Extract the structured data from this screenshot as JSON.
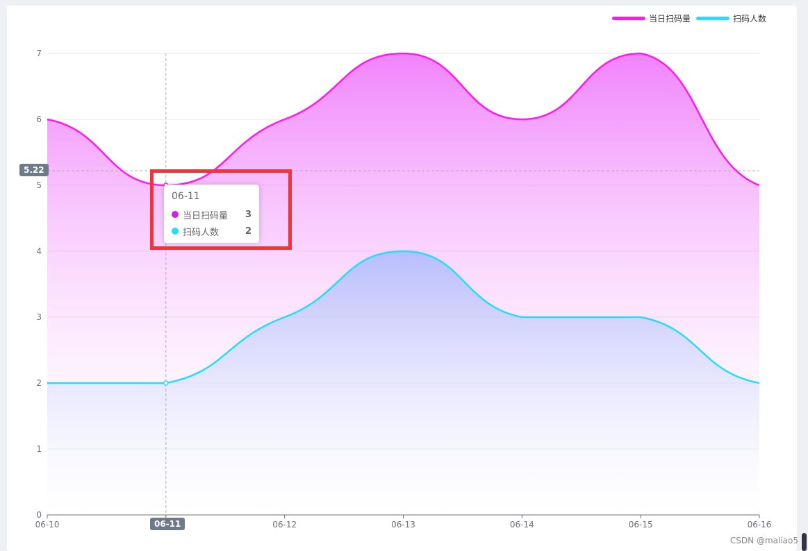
{
  "chart_data": {
    "type": "area",
    "categories": [
      "06-10",
      "06-11",
      "06-12",
      "06-13",
      "06-14",
      "06-15",
      "06-16"
    ],
    "series": [
      {
        "name": "当日扫码量",
        "values": [
          6,
          5,
          6,
          7,
          6,
          7,
          5
        ],
        "color": "#ff19ee"
      },
      {
        "name": "扫码人数",
        "values": [
          2,
          2,
          3,
          4,
          3,
          3,
          2
        ],
        "color": "#24dcff"
      }
    ],
    "ylim": [
      0,
      7
    ],
    "yticks": [
      "0",
      "1",
      "2",
      "3",
      "4",
      "5",
      "6",
      "7"
    ],
    "grid": true,
    "legend_position": "top-right"
  },
  "tooltip": {
    "title": "06-11",
    "rows": [
      {
        "name": "当日扫码量",
        "value": "3",
        "color": "#d31ee8"
      },
      {
        "name": "扫码人数",
        "value": "2",
        "color": "#24dcff"
      }
    ]
  },
  "crosshair": {
    "y_value": "5.22",
    "x_category": "06-11"
  },
  "watermark": "CSDN @maliao5"
}
